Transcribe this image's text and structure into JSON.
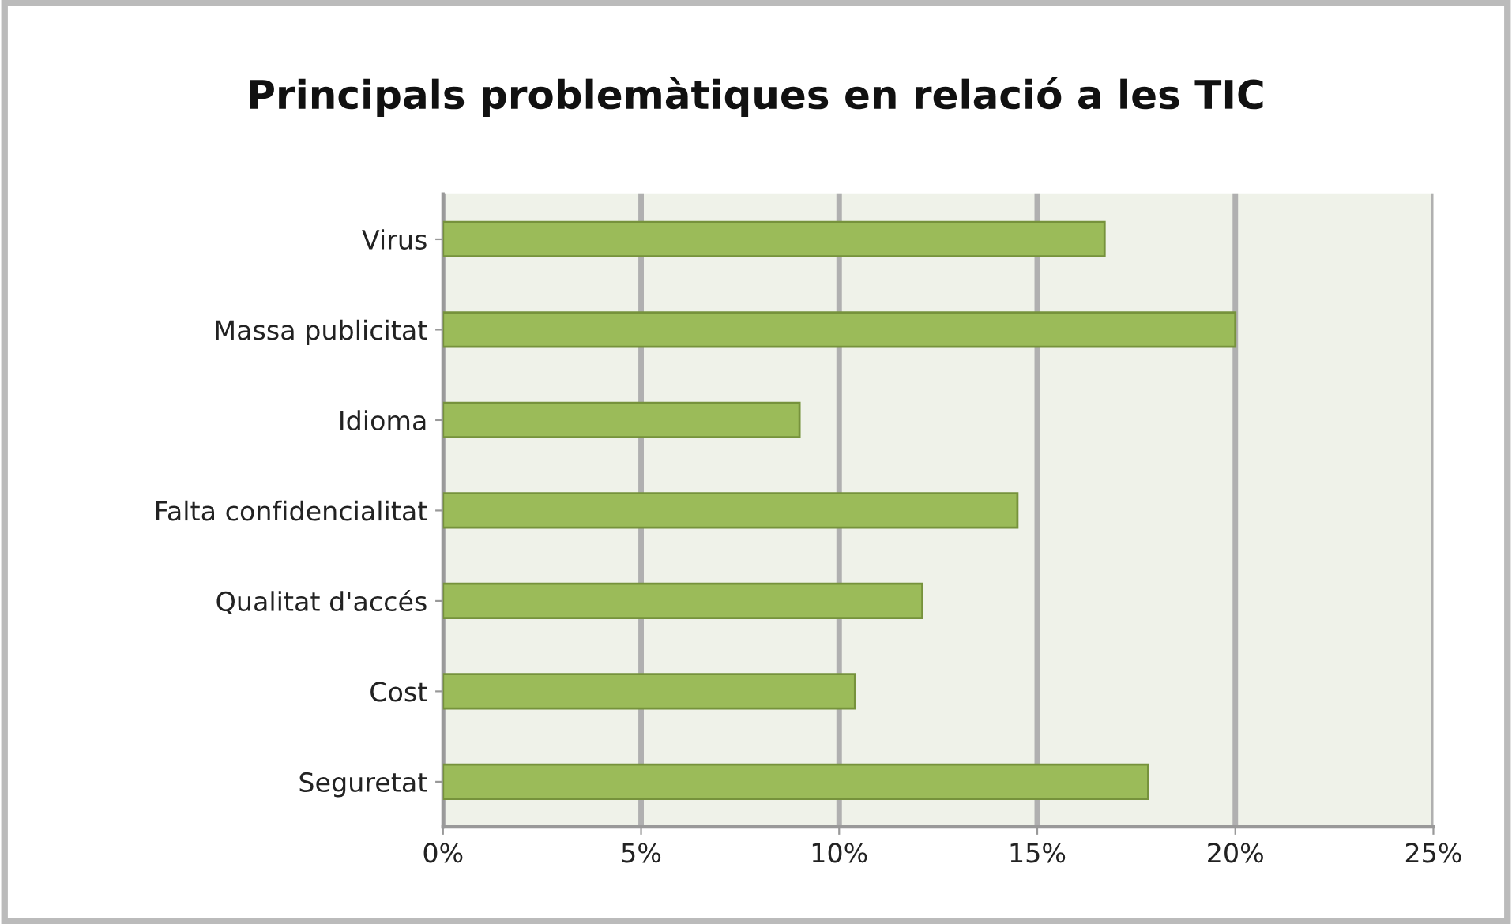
{
  "chart_data": {
    "type": "bar",
    "orientation": "horizontal",
    "title": "Principals problemàtiques en relació a les TIC",
    "categories": [
      "Virus",
      "Massa publicitat",
      "Idioma",
      "Falta confidencialitat",
      "Qualitat d'accés",
      "Cost",
      "Seguretat"
    ],
    "values": [
      16.7,
      20,
      9,
      14.5,
      12.1,
      10.4,
      17.8
    ],
    "color": "#9bbb59",
    "xlim": [
      0,
      25
    ],
    "xticks": [
      {
        "value": 0,
        "label": "0%"
      },
      {
        "value": 5,
        "label": "5%"
      },
      {
        "value": 10,
        "label": "10%"
      },
      {
        "value": 15,
        "label": "15%"
      },
      {
        "value": 20,
        "label": "20%"
      },
      {
        "value": 25,
        "label": "25%"
      }
    ],
    "grid": "x"
  }
}
